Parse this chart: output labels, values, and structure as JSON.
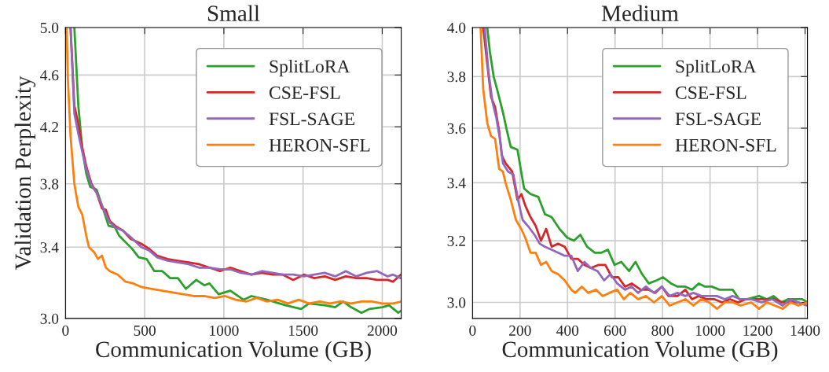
{
  "chart_data": [
    {
      "type": "line",
      "title": "Small",
      "xlabel": "Communication Volume (GB)",
      "ylabel": "Validation Perplexity",
      "log": "y",
      "grid": true,
      "legend": "top right",
      "xlim": [
        0,
        2120
      ],
      "ylim": [
        3.0,
        5.0
      ],
      "xticks": [
        0,
        500,
        1000,
        1500,
        2000
      ],
      "yticks": [
        {
          "value": 3,
          "label": "3.0"
        },
        3.4,
        3.8,
        4.2,
        4.6,
        {
          "value": 5,
          "label": "5.0"
        }
      ],
      "series": [
        {
          "name": "SplitLoRA",
          "color": "#2ca02c",
          "x": [
            56,
            81,
            106,
            131,
            156,
            197,
            230,
            272,
            313,
            338,
            379,
            421,
            462,
            512,
            561,
            611,
            661,
            710,
            760,
            826,
            876,
            909,
            967,
            1041,
            1124,
            1174,
            1273,
            1389,
            1488,
            1538,
            1637,
            1703,
            1753,
            1803,
            1869,
            1918,
            2001,
            2043,
            2101,
            2117
          ],
          "values": [
            5.0,
            4.36,
            4.04,
            3.87,
            3.78,
            3.76,
            3.66,
            3.53,
            3.52,
            3.47,
            3.43,
            3.39,
            3.34,
            3.33,
            3.26,
            3.26,
            3.22,
            3.22,
            3.16,
            3.21,
            3.18,
            3.19,
            3.13,
            3.15,
            3.1,
            3.12,
            3.1,
            3.07,
            3.05,
            3.08,
            3.07,
            3.06,
            3.09,
            3.06,
            3.03,
            3.05,
            3.06,
            3.07,
            3.03,
            3.04
          ]
        },
        {
          "name": "CSE-FSL",
          "color": "#d62728",
          "x": [
            32,
            56,
            81,
            106,
            131,
            164,
            197,
            230,
            255,
            280,
            313,
            363,
            412,
            479,
            528,
            578,
            644,
            710,
            777,
            843,
            909,
            975,
            1041,
            1107,
            1174,
            1240,
            1306,
            1372,
            1438,
            1505,
            1571,
            1637,
            1703,
            1770,
            1836,
            1902,
            1968,
            2034,
            2068,
            2117
          ],
          "values": [
            5.0,
            4.36,
            4.22,
            4.05,
            3.92,
            3.8,
            3.74,
            3.64,
            3.63,
            3.56,
            3.53,
            3.5,
            3.45,
            3.42,
            3.39,
            3.35,
            3.33,
            3.32,
            3.31,
            3.3,
            3.28,
            3.26,
            3.28,
            3.26,
            3.24,
            3.25,
            3.24,
            3.24,
            3.21,
            3.24,
            3.22,
            3.23,
            3.21,
            3.23,
            3.22,
            3.22,
            3.21,
            3.21,
            3.2,
            3.24
          ]
        },
        {
          "name": "FSL-SAGE",
          "color": "#9467bd",
          "x": [
            32,
            56,
            81,
            106,
            131,
            164,
            197,
            230,
            255,
            280,
            313,
            363,
            412,
            479,
            528,
            578,
            644,
            710,
            777,
            843,
            909,
            975,
            1041,
            1107,
            1174,
            1240,
            1306,
            1372,
            1438,
            1505,
            1571,
            1637,
            1703,
            1770,
            1836,
            1902,
            1968,
            2034,
            2068,
            2117
          ],
          "values": [
            5.0,
            4.3,
            4.15,
            4.02,
            3.9,
            3.79,
            3.74,
            3.66,
            3.6,
            3.55,
            3.52,
            3.5,
            3.46,
            3.4,
            3.38,
            3.34,
            3.32,
            3.31,
            3.3,
            3.28,
            3.28,
            3.27,
            3.27,
            3.25,
            3.24,
            3.26,
            3.25,
            3.24,
            3.24,
            3.23,
            3.24,
            3.25,
            3.23,
            3.26,
            3.23,
            3.25,
            3.26,
            3.23,
            3.24,
            3.22
          ]
        },
        {
          "name": "HERON-SFL",
          "color": "#ff7f0e",
          "x": [
            7,
            15,
            32,
            56,
            81,
            106,
            131,
            148,
            181,
            205,
            230,
            255,
            280,
            330,
            379,
            429,
            479,
            545,
            611,
            677,
            743,
            810,
            876,
            942,
            1008,
            1074,
            1141,
            1207,
            1273,
            1339,
            1405,
            1472,
            1538,
            1604,
            1670,
            1736,
            1803,
            1869,
            1935,
            2001,
            2068,
            2117
          ],
          "values": [
            5.0,
            4.57,
            4.13,
            3.8,
            3.65,
            3.6,
            3.47,
            3.4,
            3.37,
            3.33,
            3.35,
            3.28,
            3.26,
            3.24,
            3.2,
            3.19,
            3.17,
            3.16,
            3.15,
            3.14,
            3.13,
            3.12,
            3.12,
            3.11,
            3.12,
            3.1,
            3.09,
            3.11,
            3.09,
            3.1,
            3.08,
            3.1,
            3.08,
            3.09,
            3.08,
            3.09,
            3.08,
            3.09,
            3.09,
            3.08,
            3.08,
            3.09
          ]
        }
      ]
    },
    {
      "type": "line",
      "title": "Medium",
      "xlabel": "Communication Volume (GB)",
      "log": "y",
      "grid": true,
      "legend": "top right",
      "xlim": [
        0,
        1410
      ],
      "ylim": [
        2.95,
        4.0
      ],
      "xticks": [
        0,
        200,
        400,
        600,
        800,
        1000,
        1200,
        1400
      ],
      "yticks": [
        {
          "value": 3,
          "label": "3.0"
        },
        3.2,
        3.4,
        3.6,
        3.8,
        {
          "value": 4,
          "label": "4.0"
        }
      ],
      "series": [
        {
          "name": "SplitLoRA",
          "color": "#2ca02c",
          "x": [
            62,
            73,
            89,
            106,
            128,
            145,
            161,
            189,
            217,
            244,
            277,
            305,
            333,
            366,
            399,
            427,
            454,
            482,
            515,
            543,
            570,
            598,
            626,
            659,
            686,
            714,
            742,
            775,
            802,
            836,
            863,
            896,
            924,
            952,
            979,
            1007,
            1040,
            1068,
            1095,
            1123,
            1156,
            1206,
            1239,
            1267,
            1300,
            1328,
            1355,
            1388,
            1410
          ],
          "values": [
            4.0,
            3.9,
            3.8,
            3.74,
            3.66,
            3.59,
            3.53,
            3.52,
            3.38,
            3.36,
            3.35,
            3.29,
            3.28,
            3.24,
            3.21,
            3.2,
            3.22,
            3.18,
            3.16,
            3.16,
            3.17,
            3.12,
            3.13,
            3.1,
            3.13,
            3.09,
            3.06,
            3.07,
            3.08,
            3.06,
            3.05,
            3.05,
            3.04,
            3.06,
            3.05,
            3.05,
            3.04,
            3.04,
            3.04,
            3.01,
            3.01,
            3.02,
            3.01,
            3.02,
            3.0,
            3.01,
            3.01,
            3.01,
            3.0
          ]
        },
        {
          "name": "CSE-FSL",
          "color": "#d62728",
          "x": [
            45,
            62,
            78,
            95,
            112,
            123,
            139,
            167,
            189,
            206,
            222,
            244,
            266,
            288,
            310,
            333,
            360,
            388,
            416,
            443,
            471,
            498,
            531,
            559,
            587,
            614,
            642,
            670,
            708,
            742,
            769,
            797,
            825,
            863,
            896,
            924,
            952,
            985,
            1018,
            1051,
            1084,
            1118,
            1151,
            1195,
            1239,
            1272,
            1306,
            1339,
            1372,
            1410
          ],
          "values": [
            4.0,
            3.85,
            3.72,
            3.68,
            3.59,
            3.5,
            3.47,
            3.44,
            3.34,
            3.36,
            3.32,
            3.28,
            3.25,
            3.2,
            3.24,
            3.18,
            3.19,
            3.18,
            3.14,
            3.14,
            3.12,
            3.11,
            3.12,
            3.12,
            3.08,
            3.08,
            3.05,
            3.06,
            3.04,
            3.04,
            3.03,
            3.05,
            3.02,
            3.02,
            3.04,
            3.01,
            3.02,
            3.01,
            3.01,
            3.0,
            3.01,
            3.0,
            3.01,
            3.01,
            3.01,
            3.01,
            3.0,
            3.0,
            3.0,
            2.99
          ]
        },
        {
          "name": "FSL-SAGE",
          "color": "#9467bd",
          "x": [
            51,
            67,
            84,
            100,
            117,
            128,
            150,
            172,
            194,
            211,
            233,
            261,
            283,
            305,
            333,
            360,
            388,
            416,
            443,
            471,
            498,
            526,
            554,
            581,
            609,
            642,
            670,
            697,
            730,
            764,
            797,
            830,
            863,
            896,
            930,
            963,
            996,
            1029,
            1062,
            1095,
            1129,
            1173,
            1217,
            1261,
            1306,
            1339,
            1372,
            1410
          ],
          "values": [
            4.0,
            3.82,
            3.7,
            3.64,
            3.55,
            3.47,
            3.44,
            3.43,
            3.33,
            3.27,
            3.25,
            3.22,
            3.19,
            3.18,
            3.17,
            3.16,
            3.15,
            3.15,
            3.1,
            3.13,
            3.11,
            3.1,
            3.07,
            3.09,
            3.06,
            3.04,
            3.05,
            3.03,
            3.05,
            3.03,
            3.05,
            3.02,
            3.03,
            3.02,
            3.03,
            3.02,
            3.02,
            3.02,
            3.01,
            3.02,
            3.01,
            3.01,
            3.0,
            3.01,
            2.99,
            3.01,
            3.0,
            2.99
          ]
        },
        {
          "name": "HERON-SFL",
          "color": "#ff7f0e",
          "x": [
            34,
            45,
            62,
            78,
            95,
            112,
            128,
            139,
            161,
            183,
            205,
            222,
            244,
            266,
            288,
            310,
            333,
            360,
            388,
            416,
            432,
            460,
            487,
            520,
            548,
            576,
            609,
            637,
            664,
            697,
            730,
            764,
            797,
            830,
            863,
            896,
            930,
            963,
            996,
            1029,
            1062,
            1095,
            1129,
            1173,
            1206,
            1239,
            1272,
            1306,
            1339,
            1372,
            1410
          ],
          "values": [
            4.0,
            3.75,
            3.62,
            3.57,
            3.56,
            3.45,
            3.44,
            3.4,
            3.34,
            3.27,
            3.24,
            3.21,
            3.16,
            3.16,
            3.12,
            3.13,
            3.1,
            3.09,
            3.07,
            3.04,
            3.03,
            3.05,
            3.03,
            3.04,
            3.02,
            3.03,
            3.04,
            3.01,
            3.03,
            3.01,
            3.02,
            3.0,
            3.02,
            2.99,
            3.0,
            3.01,
            2.99,
            3.01,
            3.0,
            2.98,
            3.0,
            3.0,
            2.99,
            3.0,
            2.98,
            3.0,
            2.99,
            2.98,
            3.0,
            2.99,
            3.0
          ]
        }
      ]
    }
  ]
}
